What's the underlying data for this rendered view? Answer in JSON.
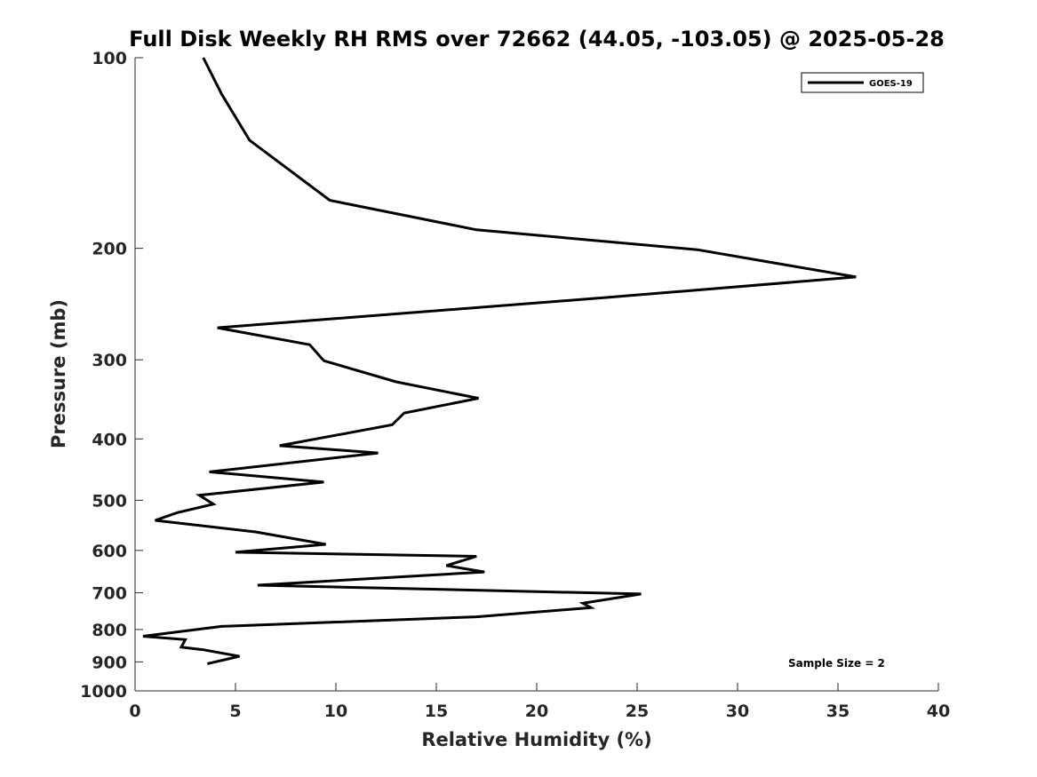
{
  "chart_data": {
    "type": "line",
    "title": "Full Disk Weekly RH RMS over 72662 (44.05, -103.05) @ 2025-05-28",
    "xlabel": "Relative Humidity (%)",
    "ylabel": "Pressure (mb)",
    "xlim": [
      0,
      40
    ],
    "ylim": [
      100,
      1000
    ],
    "y_scale": "log",
    "y_reversed": true,
    "x_ticks": [
      "0",
      "5",
      "10",
      "15",
      "20",
      "25",
      "30",
      "35",
      "40"
    ],
    "y_ticks": [
      "100",
      "200",
      "300",
      "400",
      "500",
      "600",
      "700",
      "800",
      "900",
      "1000"
    ],
    "grid": false,
    "legend_position": "top-right",
    "annotation": "Sample Size = 2",
    "series": [
      {
        "name": "GOES-19",
        "color": "#000000",
        "x": [
          3.4,
          4.3,
          5.7,
          9.7,
          17.0,
          28.0,
          35.9,
          23.6,
          4.1,
          8.7,
          9.4,
          13.0,
          17.1,
          13.4,
          12.8,
          7.2,
          12.1,
          3.7,
          9.4,
          3.2,
          3.9,
          2.1,
          1.0,
          6.0,
          9.5,
          5.0,
          17.0,
          15.5,
          17.4,
          6.1,
          25.2,
          22.3,
          22.7,
          17.0,
          4.3,
          0.4,
          2.5,
          2.3,
          3.4,
          5.2,
          3.6
        ],
        "y": [
          100,
          114,
          135,
          168,
          187,
          201,
          222,
          239,
          267,
          284,
          301,
          325,
          345,
          364,
          380,
          410,
          421,
          451,
          468,
          491,
          507,
          523,
          538,
          561,
          587,
          604,
          613,
          634,
          649,
          681,
          703,
          727,
          739,
          764,
          791,
          820,
          830,
          853,
          861,
          882,
          906
        ]
      }
    ]
  }
}
